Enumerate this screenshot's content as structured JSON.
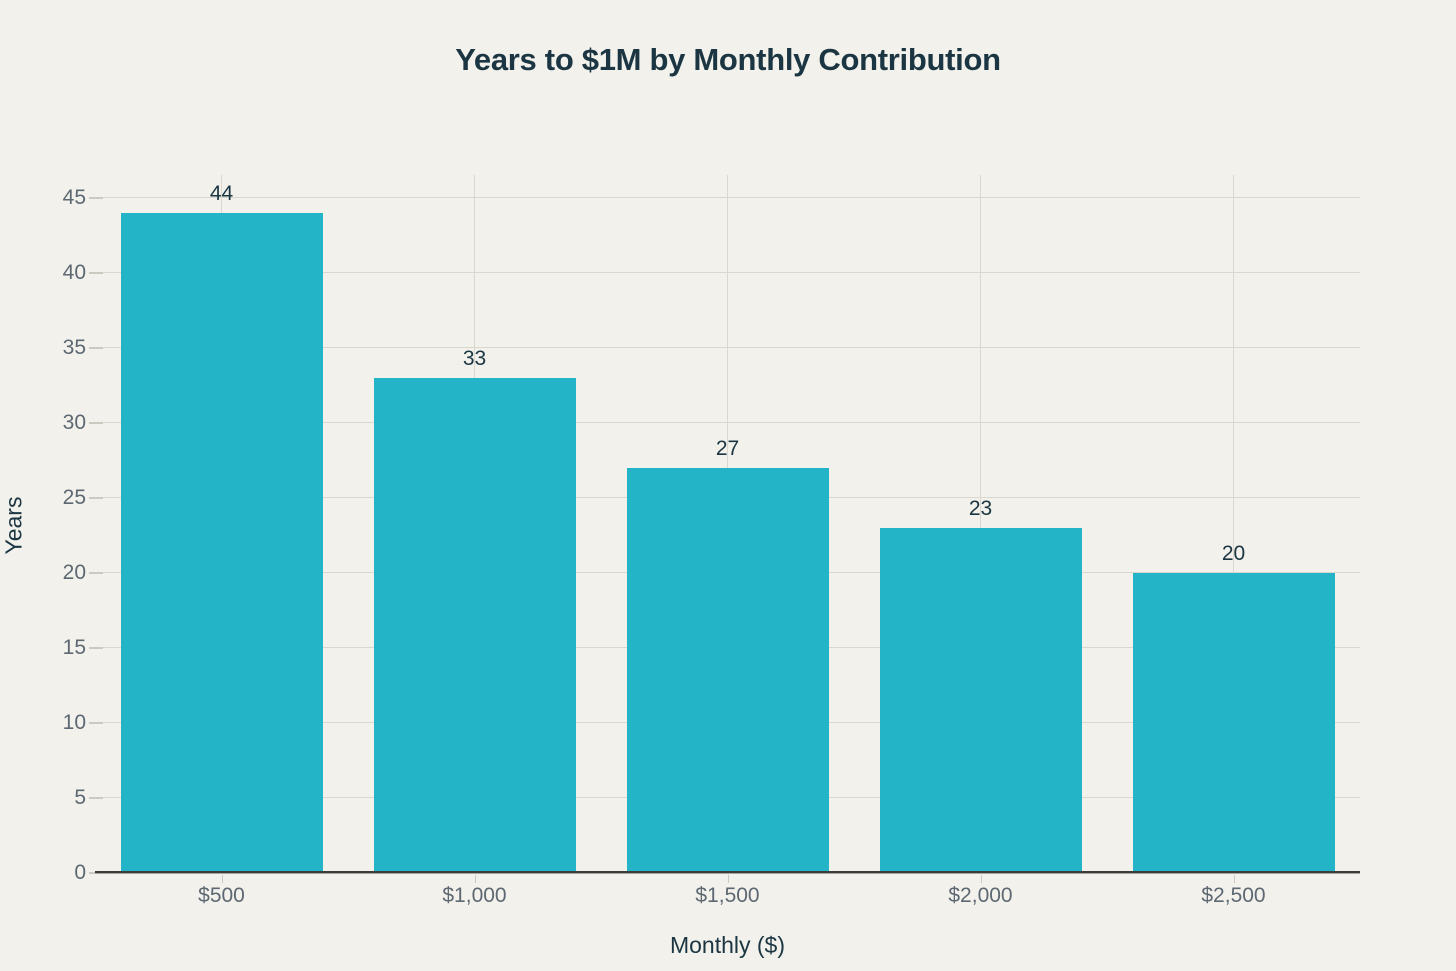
{
  "chart_data": {
    "type": "bar",
    "title": "Years to $1M by Monthly Contribution",
    "xlabel": "Monthly ($)",
    "ylabel": "Years",
    "categories": [
      "$500",
      "$1,000",
      "$1,500",
      "$2,000",
      "$2,500"
    ],
    "values": [
      44,
      33,
      27,
      23,
      20
    ],
    "data_labels": [
      "44",
      "33",
      "27",
      "23",
      "20"
    ],
    "ylim": [
      0,
      46.5
    ],
    "yticks": [
      0,
      5,
      10,
      15,
      20,
      25,
      30,
      35,
      40,
      45
    ],
    "grid": true,
    "legend": "none",
    "colors": {
      "bar": "#23b4c8",
      "title_text": "#1b3642",
      "tick_text": "#5d6872",
      "gridline": "#dad7cf",
      "axis_line": "#3c3c3a",
      "background": "#f2f1ec"
    }
  }
}
